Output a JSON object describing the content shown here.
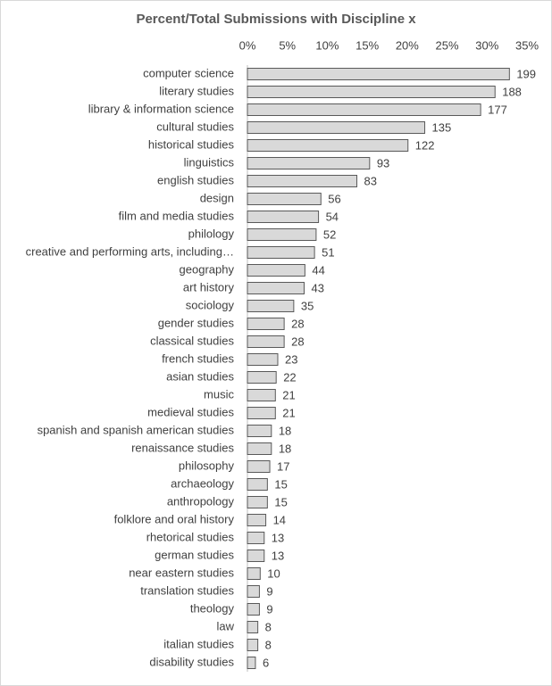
{
  "chart_data": {
    "type": "hbar",
    "title": "Percent/Total Submissions with Discipline x",
    "categories": [
      "computer science",
      "literary studies",
      "library & information science",
      "cultural studies",
      "historical studies",
      "linguistics",
      "english studies",
      "design",
      "film and media studies",
      "philology",
      "creative and performing arts, including…",
      "geography",
      "art history",
      "sociology",
      "gender studies",
      "classical studies",
      "french studies",
      "asian studies",
      "music",
      "medieval studies",
      "spanish and spanish american studies",
      "renaissance studies",
      "philosophy",
      "archaeology",
      "anthropology",
      "folklore and oral history",
      "rhetorical studies",
      "german studies",
      "near eastern studies",
      "translation studies",
      "theology",
      "law",
      "italian studies",
      "disability studies"
    ],
    "values": [
      32.8,
      31.0,
      29.2,
      22.2,
      20.1,
      15.3,
      13.7,
      9.2,
      8.9,
      8.6,
      8.4,
      7.2,
      7.1,
      5.8,
      4.6,
      4.6,
      3.8,
      3.6,
      3.5,
      3.5,
      3.0,
      3.0,
      2.8,
      2.5,
      2.5,
      2.3,
      2.1,
      2.1,
      1.6,
      1.5,
      1.5,
      1.3,
      1.3,
      1.0
    ],
    "data_labels": [
      199,
      188,
      177,
      135,
      122,
      93,
      83,
      56,
      54,
      52,
      51,
      44,
      43,
      35,
      28,
      28,
      23,
      22,
      21,
      21,
      18,
      18,
      17,
      15,
      15,
      14,
      13,
      13,
      10,
      9,
      9,
      8,
      8,
      6
    ],
    "color": "#d9d9d9",
    "xlim": [
      0,
      35
    ],
    "xticks": [
      {
        "value": 0,
        "label": "0%"
      },
      {
        "value": 5,
        "label": "5%"
      },
      {
        "value": 10,
        "label": "10%"
      },
      {
        "value": 15,
        "label": "15%"
      },
      {
        "value": 20,
        "label": "20%"
      },
      {
        "value": 25,
        "label": "25%"
      },
      {
        "value": 30,
        "label": "30%"
      },
      {
        "value": 35,
        "label": "35%"
      }
    ]
  }
}
